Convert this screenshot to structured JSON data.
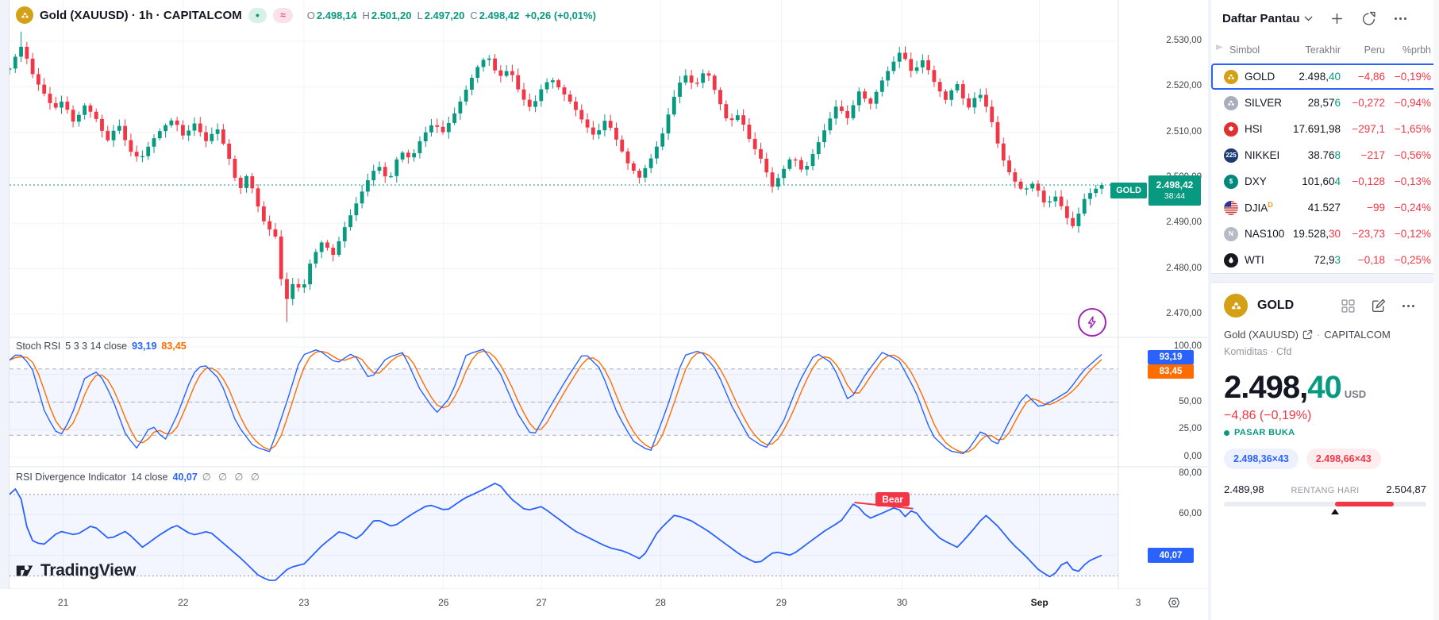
{
  "colors": {
    "up": "#089981",
    "down": "#f23645",
    "blue": "#2962ff",
    "orange": "#ff6d00",
    "grid": "#f0f3fa",
    "border": "#e0e3eb",
    "band": "rgba(41,98,255,0.055)"
  },
  "header": {
    "title": "Gold (XAUUSD) · 1h · CAPITALCOM",
    "pills": {
      "market_dot": "●",
      "data_mode": "≈"
    },
    "ohlc": {
      "o_l": "O",
      "o": "2.498,14",
      "h_l": "H",
      "h": "2.501,20",
      "l_l": "L",
      "l": "2.497,20",
      "c_l": "C",
      "c": "2.498,42",
      "change": "+0,26 (+0,01%)"
    }
  },
  "chart_data": [
    {
      "type": "candlestick",
      "title": "Gold (XAUUSD) 1h",
      "exchange": "CAPITALCOM",
      "last": 2498.42,
      "price_range": [
        2466,
        2533
      ],
      "axis_ticks": [
        {
          "label": "2.530,00",
          "value": 2530
        },
        {
          "label": "2.520,00",
          "value": 2520
        },
        {
          "label": "2.510,00",
          "value": 2510
        },
        {
          "label": "2.500,00",
          "value": 2500
        },
        {
          "label": "2.490,00",
          "value": 2490
        },
        {
          "label": "2.480,00",
          "value": 2480
        },
        {
          "label": "2.470,00",
          "value": 2470
        }
      ],
      "candle_count": 190,
      "close_points": [
        [
          0.0,
          2524
        ],
        [
          0.006,
          2527
        ],
        [
          0.01,
          2529
        ],
        [
          0.016,
          2526
        ],
        [
          0.022,
          2522
        ],
        [
          0.03,
          2519
        ],
        [
          0.04,
          2515
        ],
        [
          0.048,
          2517
        ],
        [
          0.058,
          2512
        ],
        [
          0.068,
          2516
        ],
        [
          0.078,
          2513
        ],
        [
          0.088,
          2508
        ],
        [
          0.098,
          2512
        ],
        [
          0.108,
          2506
        ],
        [
          0.118,
          2504
        ],
        [
          0.128,
          2508
        ],
        [
          0.138,
          2511
        ],
        [
          0.148,
          2513
        ],
        [
          0.157,
          2509
        ],
        [
          0.167,
          2512
        ],
        [
          0.177,
          2508
        ],
        [
          0.187,
          2511
        ],
        [
          0.197,
          2505
        ],
        [
          0.207,
          2497
        ],
        [
          0.215,
          2501
        ],
        [
          0.222,
          2495
        ],
        [
          0.23,
          2490
        ],
        [
          0.24,
          2487
        ],
        [
          0.248,
          2472
        ],
        [
          0.256,
          2477
        ],
        [
          0.264,
          2475
        ],
        [
          0.272,
          2482
        ],
        [
          0.282,
          2486
        ],
        [
          0.292,
          2483
        ],
        [
          0.302,
          2489
        ],
        [
          0.312,
          2494
        ],
        [
          0.322,
          2499
        ],
        [
          0.332,
          2503
        ],
        [
          0.342,
          2499
        ],
        [
          0.352,
          2506
        ],
        [
          0.362,
          2504
        ],
        [
          0.372,
          2509
        ],
        [
          0.382,
          2512
        ],
        [
          0.391,
          2510
        ],
        [
          0.401,
          2514
        ],
        [
          0.411,
          2519
        ],
        [
          0.421,
          2524
        ],
        [
          0.431,
          2527
        ],
        [
          0.441,
          2522
        ],
        [
          0.451,
          2524
        ],
        [
          0.461,
          2518
        ],
        [
          0.471,
          2515
        ],
        [
          0.478,
          2519
        ],
        [
          0.488,
          2522
        ],
        [
          0.498,
          2519
        ],
        [
          0.508,
          2516
        ],
        [
          0.518,
          2512
        ],
        [
          0.528,
          2509
        ],
        [
          0.538,
          2513
        ],
        [
          0.548,
          2508
        ],
        [
          0.558,
          2503
        ],
        [
          0.568,
          2500
        ],
        [
          0.578,
          2504
        ],
        [
          0.588,
          2509
        ],
        [
          0.598,
          2517
        ],
        [
          0.608,
          2523
        ],
        [
          0.618,
          2520
        ],
        [
          0.628,
          2524
        ],
        [
          0.638,
          2518
        ],
        [
          0.648,
          2512
        ],
        [
          0.658,
          2514
        ],
        [
          0.668,
          2508
        ],
        [
          0.678,
          2504
        ],
        [
          0.688,
          2498
        ],
        [
          0.696,
          2501
        ],
        [
          0.706,
          2505
        ],
        [
          0.716,
          2501
        ],
        [
          0.726,
          2506
        ],
        [
          0.736,
          2511
        ],
        [
          0.746,
          2516
        ],
        [
          0.756,
          2513
        ],
        [
          0.766,
          2519
        ],
        [
          0.776,
          2516
        ],
        [
          0.786,
          2521
        ],
        [
          0.796,
          2525
        ],
        [
          0.804,
          2528
        ],
        [
          0.814,
          2523
        ],
        [
          0.824,
          2526
        ],
        [
          0.834,
          2521
        ],
        [
          0.844,
          2517
        ],
        [
          0.854,
          2521
        ],
        [
          0.864,
          2515
        ],
        [
          0.874,
          2519
        ],
        [
          0.884,
          2514
        ],
        [
          0.894,
          2505
        ],
        [
          0.904,
          2500
        ],
        [
          0.914,
          2497
        ],
        [
          0.924,
          2499
        ],
        [
          0.934,
          2494
        ],
        [
          0.944,
          2496
        ],
        [
          0.954,
          2491
        ],
        [
          0.96,
          2489
        ],
        [
          0.968,
          2495
        ],
        [
          0.976,
          2497
        ],
        [
          0.985,
          2498.4
        ]
      ]
    },
    {
      "type": "line",
      "title": "Stoch RSI",
      "params": "5 3 3 14 close",
      "range": [
        0,
        100
      ],
      "bands": [
        80,
        50,
        20
      ],
      "shaded_band": [
        80,
        20
      ],
      "axis_ticks": [
        {
          "label": "100,00",
          "value": 100
        },
        {
          "label": "50,00",
          "value": 50
        },
        {
          "label": "25,00",
          "value": 25
        },
        {
          "label": "0,00",
          "value": 0
        }
      ],
      "k_last": 93.19,
      "d_last": 83.45,
      "k_points": [
        [
          0.0,
          88
        ],
        [
          0.008,
          95
        ],
        [
          0.02,
          82
        ],
        [
          0.032,
          40
        ],
        [
          0.045,
          18
        ],
        [
          0.055,
          35
        ],
        [
          0.068,
          72
        ],
        [
          0.08,
          78
        ],
        [
          0.092,
          55
        ],
        [
          0.105,
          20
        ],
        [
          0.115,
          8
        ],
        [
          0.128,
          30
        ],
        [
          0.14,
          15
        ],
        [
          0.152,
          40
        ],
        [
          0.165,
          75
        ],
        [
          0.175,
          85
        ],
        [
          0.19,
          70
        ],
        [
          0.205,
          30
        ],
        [
          0.22,
          10
        ],
        [
          0.235,
          5
        ],
        [
          0.25,
          50
        ],
        [
          0.263,
          92
        ],
        [
          0.278,
          98
        ],
        [
          0.295,
          85
        ],
        [
          0.31,
          95
        ],
        [
          0.325,
          70
        ],
        [
          0.34,
          90
        ],
        [
          0.355,
          95
        ],
        [
          0.37,
          62
        ],
        [
          0.385,
          40
        ],
        [
          0.398,
          55
        ],
        [
          0.412,
          93
        ],
        [
          0.428,
          98
        ],
        [
          0.443,
          75
        ],
        [
          0.458,
          40
        ],
        [
          0.472,
          18
        ],
        [
          0.487,
          45
        ],
        [
          0.503,
          72
        ],
        [
          0.518,
          95
        ],
        [
          0.533,
          80
        ],
        [
          0.548,
          40
        ],
        [
          0.562,
          15
        ],
        [
          0.578,
          5
        ],
        [
          0.593,
          45
        ],
        [
          0.608,
          92
        ],
        [
          0.623,
          97
        ],
        [
          0.638,
          78
        ],
        [
          0.652,
          45
        ],
        [
          0.667,
          18
        ],
        [
          0.682,
          8
        ],
        [
          0.697,
          30
        ],
        [
          0.712,
          68
        ],
        [
          0.727,
          95
        ],
        [
          0.742,
          85
        ],
        [
          0.757,
          50
        ],
        [
          0.772,
          75
        ],
        [
          0.787,
          95
        ],
        [
          0.802,
          88
        ],
        [
          0.817,
          60
        ],
        [
          0.832,
          20
        ],
        [
          0.847,
          6
        ],
        [
          0.862,
          3
        ],
        [
          0.877,
          25
        ],
        [
          0.89,
          10
        ],
        [
          0.903,
          35
        ],
        [
          0.916,
          58
        ],
        [
          0.929,
          45
        ],
        [
          0.942,
          52
        ],
        [
          0.955,
          60
        ],
        [
          0.968,
          78
        ],
        [
          0.985,
          93.2
        ]
      ]
    },
    {
      "type": "line",
      "title": "RSI Divergence Indicator",
      "params": "14 close",
      "range": [
        20,
        80
      ],
      "bands": [
        70,
        30
      ],
      "shaded_band": [
        70,
        30
      ],
      "axis_ticks": [
        {
          "label": "80,00",
          "value": 80
        },
        {
          "label": "60,00",
          "value": 60
        }
      ],
      "last": 40.07,
      "points": [
        [
          0.0,
          70
        ],
        [
          0.008,
          74
        ],
        [
          0.018,
          48
        ],
        [
          0.03,
          45
        ],
        [
          0.045,
          52
        ],
        [
          0.06,
          50
        ],
        [
          0.075,
          55
        ],
        [
          0.09,
          48
        ],
        [
          0.105,
          52
        ],
        [
          0.12,
          44
        ],
        [
          0.135,
          50
        ],
        [
          0.15,
          55
        ],
        [
          0.165,
          50
        ],
        [
          0.18,
          52
        ],
        [
          0.195,
          45
        ],
        [
          0.21,
          38
        ],
        [
          0.225,
          30
        ],
        [
          0.238,
          27
        ],
        [
          0.252,
          34
        ],
        [
          0.266,
          36
        ],
        [
          0.282,
          45
        ],
        [
          0.298,
          52
        ],
        [
          0.314,
          48
        ],
        [
          0.33,
          58
        ],
        [
          0.346,
          54
        ],
        [
          0.362,
          60
        ],
        [
          0.378,
          65
        ],
        [
          0.394,
          62
        ],
        [
          0.41,
          68
        ],
        [
          0.426,
          72
        ],
        [
          0.44,
          76
        ],
        [
          0.452,
          68
        ],
        [
          0.466,
          62
        ],
        [
          0.48,
          64
        ],
        [
          0.495,
          58
        ],
        [
          0.51,
          52
        ],
        [
          0.525,
          48
        ],
        [
          0.54,
          44
        ],
        [
          0.555,
          42
        ],
        [
          0.57,
          38
        ],
        [
          0.585,
          52
        ],
        [
          0.6,
          60
        ],
        [
          0.615,
          57
        ],
        [
          0.63,
          52
        ],
        [
          0.645,
          46
        ],
        [
          0.66,
          40
        ],
        [
          0.675,
          36
        ],
        [
          0.69,
          42
        ],
        [
          0.705,
          40
        ],
        [
          0.72,
          46
        ],
        [
          0.735,
          52
        ],
        [
          0.75,
          57
        ],
        [
          0.762,
          66
        ],
        [
          0.775,
          58
        ],
        [
          0.788,
          61
        ],
        [
          0.8,
          64
        ],
        [
          0.808,
          59
        ],
        [
          0.815,
          63
        ],
        [
          0.825,
          56
        ],
        [
          0.84,
          48
        ],
        [
          0.855,
          44
        ],
        [
          0.868,
          52
        ],
        [
          0.88,
          60
        ],
        [
          0.892,
          54
        ],
        [
          0.904,
          46
        ],
        [
          0.916,
          40
        ],
        [
          0.928,
          33
        ],
        [
          0.94,
          29
        ],
        [
          0.952,
          38
        ],
        [
          0.962,
          31
        ],
        [
          0.972,
          37
        ],
        [
          0.985,
          40.1
        ]
      ],
      "annotation": {
        "text": "Bear",
        "from": [
          0.762,
          66
        ],
        "to": [
          0.815,
          63
        ]
      }
    }
  ],
  "indicators": {
    "stoch": {
      "title": "Stoch RSI",
      "params": "5 3 3 14 close",
      "k": "93,19",
      "d": "83,45"
    },
    "rsi": {
      "title": "RSI Divergence Indicator",
      "params": "14 close",
      "value": "40,07",
      "empties": "∅ ∅ ∅ ∅"
    }
  },
  "price_tag": {
    "symbol": "GOLD",
    "price": "2.498,42",
    "countdown": "38:44"
  },
  "time_axis": {
    "labels": [
      {
        "t": "21",
        "f": 0.0484
      },
      {
        "t": "22",
        "f": 0.1566
      },
      {
        "t": "23",
        "f": 0.2655
      },
      {
        "t": "26",
        "f": 0.3914
      },
      {
        "t": "27",
        "f": 0.4797
      },
      {
        "t": "28",
        "f": 0.5872
      },
      {
        "t": "29",
        "f": 0.6961
      },
      {
        "t": "30",
        "f": 0.8049
      },
      {
        "t": "Sep",
        "f": 0.9289,
        "em": true
      },
      {
        "t": "3",
        "f": 1.018
      }
    ]
  },
  "logo_text": "TradingView",
  "watchlist": {
    "title": "Daftar Pantau",
    "columns": {
      "symbol": "Simbol",
      "last": "Terakhir",
      "change": "Peru",
      "pct": "%prbh"
    },
    "rows": [
      {
        "symbol": "GOLD",
        "icon": {
          "type": "bars",
          "bg": "#d4a017"
        },
        "last_main": "2.498,",
        "last_tick": "40",
        "tick_dir": "up",
        "change": "−4,86",
        "pct": "−0,19%",
        "selected": true
      },
      {
        "symbol": "SILVER",
        "icon": {
          "type": "bars",
          "bg": "#a8aeba"
        },
        "last_main": "28,57",
        "last_tick": "6",
        "tick_dir": "up",
        "change": "−0,272",
        "pct": "−0,94%",
        "selected": false
      },
      {
        "symbol": "HSI",
        "icon": {
          "type": "text",
          "bg": "#e03131",
          "text": "✽"
        },
        "last_main": "17.691,98",
        "last_tick": "",
        "tick_dir": "up",
        "change": "−297,1",
        "pct": "−1,65%",
        "selected": false
      },
      {
        "symbol": "NIKKEI",
        "icon": {
          "type": "text",
          "bg": "#1d3b72",
          "text": "225"
        },
        "last_main": "38.76",
        "last_tick": "8",
        "tick_dir": "up",
        "change": "−217",
        "pct": "−0,56%",
        "selected": false
      },
      {
        "symbol": "DXY",
        "icon": {
          "type": "text",
          "bg": "#00897b",
          "text": "$"
        },
        "last_main": "101,60",
        "last_tick": "4",
        "tick_dir": "up",
        "change": "−0,128",
        "pct": "−0,13%",
        "selected": false
      },
      {
        "symbol": "DJIA",
        "badge": "D",
        "icon": {
          "type": "flag",
          "bg": "#b22234"
        },
        "last_main": "41.527",
        "last_tick": "",
        "tick_dir": "up",
        "change": "−99",
        "pct": "−0,24%",
        "selected": false
      },
      {
        "symbol": "NAS100",
        "icon": {
          "type": "text",
          "bg": "#b6bcc6",
          "text": "N"
        },
        "last_main": "19.528,",
        "last_tick": "30",
        "tick_dir": "down",
        "change": "−23,73",
        "pct": "−0,12%",
        "selected": false
      },
      {
        "symbol": "WTI",
        "icon": {
          "type": "drop",
          "bg": "#16181d"
        },
        "last_main": "72,9",
        "last_tick": "3",
        "tick_dir": "up",
        "change": "−0,18",
        "pct": "−0,25%",
        "selected": false
      }
    ]
  },
  "detail": {
    "name": "GOLD",
    "subtitle_symbol": "Gold (XAUUSD)",
    "subtitle_sep": "·",
    "subtitle_exchange": "CAPITALCOM",
    "category": "Komiditas",
    "category_sep": "·",
    "category_type": "Cfd",
    "price_main": "2.498,",
    "price_tick": "40",
    "currency": "USD",
    "change": "−4,86 (−0,19%)",
    "market_status": "PASAR BUKA",
    "bid": "2.498,36×43",
    "ask": "2.498,66×43",
    "range_low": "2.489,98",
    "range_label": "RENTANG HARI",
    "range_high": "2.504,87"
  }
}
